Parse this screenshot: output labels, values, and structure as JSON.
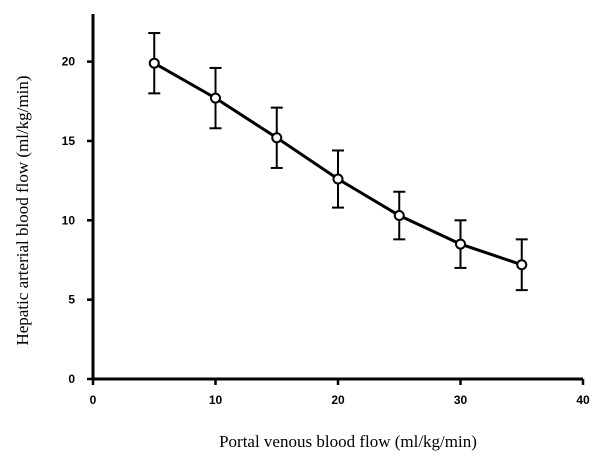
{
  "chart_data": {
    "type": "line",
    "xlabel": "Portal venous blood flow (ml/kg/min)",
    "ylabel": "Hepatic arterial blood flow (ml/kg/min)",
    "xlim": [
      0,
      40
    ],
    "ylim": [
      0,
      23
    ],
    "x_ticks": [
      0,
      10,
      20,
      30,
      40
    ],
    "y_ticks": [
      0,
      5,
      10,
      15,
      20
    ],
    "grid": false,
    "marker": "open-circle",
    "series": [
      {
        "x": [
          5,
          10,
          15,
          20,
          25,
          30,
          35
        ],
        "y": [
          19.9,
          17.7,
          15.2,
          12.6,
          10.3,
          8.5,
          7.2
        ],
        "error": [
          1.9,
          1.9,
          1.9,
          1.8,
          1.5,
          1.5,
          1.6
        ]
      }
    ]
  }
}
